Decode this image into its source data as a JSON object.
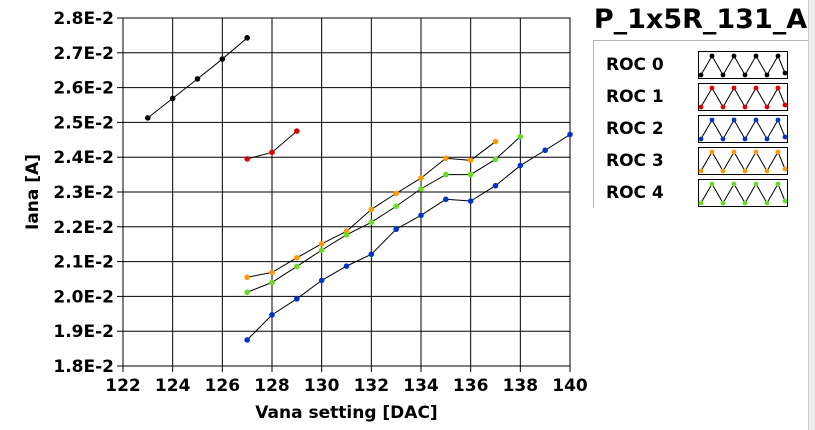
{
  "chart_data": {
    "type": "line",
    "title": "P_1x5R_131_A",
    "xlabel": "Vana setting [DAC]",
    "ylabel": "Iana [A]",
    "xlim": [
      122,
      140
    ],
    "ylim": [
      0.018,
      0.028
    ],
    "x_ticks": [
      "122",
      "124",
      "126",
      "128",
      "130",
      "132",
      "134",
      "136",
      "138",
      "140"
    ],
    "y_ticks": [
      "1.8E-2",
      "1.9E-2",
      "2.0E-2",
      "2.1E-2",
      "2.2E-2",
      "2.3E-2",
      "2.4E-2",
      "2.5E-2",
      "2.6E-2",
      "2.7E-2",
      "2.8E-2"
    ],
    "grid": true,
    "legend_position": "top-right",
    "series": [
      {
        "name": "ROC 0",
        "color": "#000000",
        "x": [
          123,
          124,
          125,
          126,
          127
        ],
        "y": [
          0.02513,
          0.02569,
          0.02625,
          0.02682,
          0.02743
        ]
      },
      {
        "name": "ROC 1",
        "color": "#e00000",
        "x": [
          127,
          128,
          129
        ],
        "y": [
          0.02395,
          0.02414,
          0.02475
        ]
      },
      {
        "name": "ROC 2",
        "color": "#0033cc",
        "x": [
          127,
          128,
          129,
          130,
          131,
          132,
          133,
          134,
          135,
          136,
          137,
          138,
          139,
          140
        ],
        "y": [
          0.01875,
          0.01947,
          0.01993,
          0.02046,
          0.02087,
          0.02121,
          0.02193,
          0.02233,
          0.02279,
          0.02274,
          0.02318,
          0.02376,
          0.0242,
          0.02465
        ]
      },
      {
        "name": "ROC 3",
        "color": "#ff9900",
        "x": [
          127,
          128,
          129,
          130,
          131,
          132,
          133,
          134,
          135,
          136,
          137
        ],
        "y": [
          0.02055,
          0.02069,
          0.02111,
          0.02151,
          0.02187,
          0.0225,
          0.02296,
          0.0234,
          0.02397,
          0.02391,
          0.02445
        ]
      },
      {
        "name": "ROC 4",
        "color": "#66dd22",
        "x": [
          127,
          128,
          129,
          130,
          131,
          132,
          133,
          134,
          135,
          136,
          137,
          138
        ],
        "y": [
          0.02012,
          0.0204,
          0.02086,
          0.02133,
          0.02177,
          0.02213,
          0.02259,
          0.02309,
          0.0235,
          0.0235,
          0.02394,
          0.02459
        ]
      }
    ]
  }
}
